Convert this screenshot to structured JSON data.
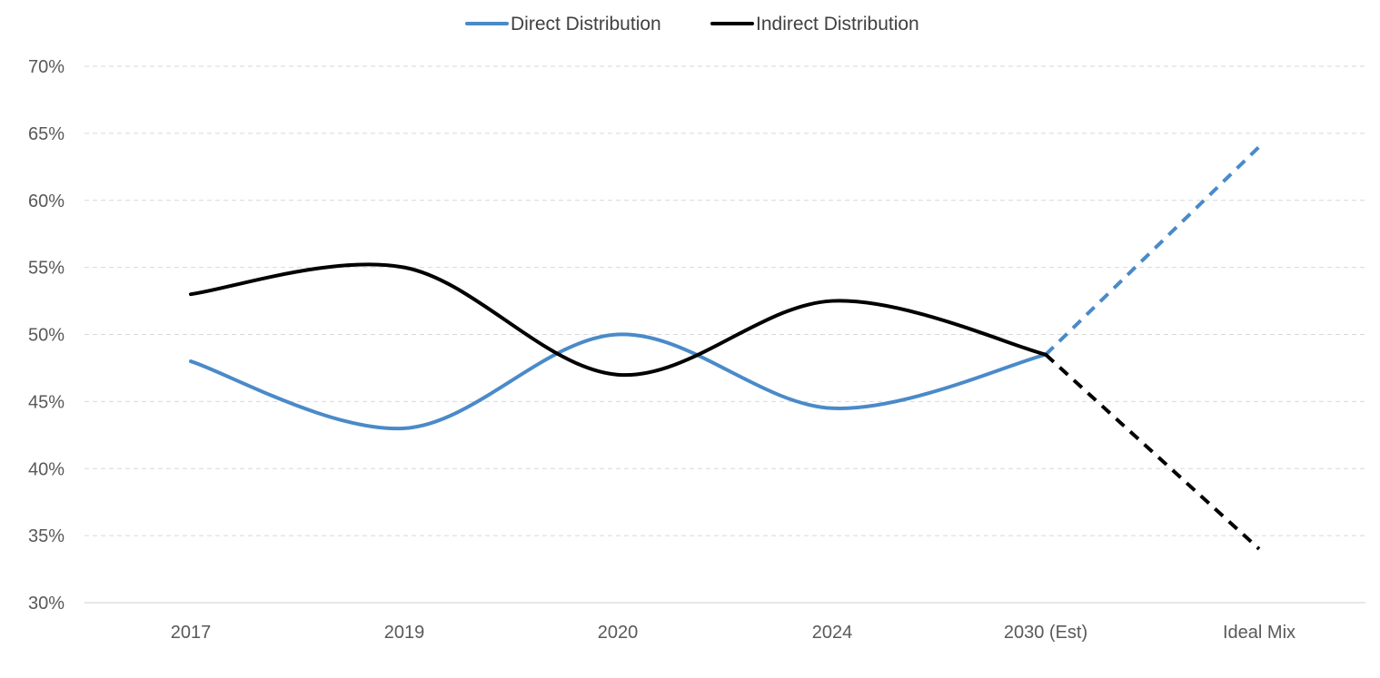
{
  "chart_data": {
    "type": "line",
    "title": "",
    "xlabel": "",
    "ylabel": "",
    "categories": [
      "2017",
      "2019",
      "2020",
      "2024",
      "2030 (Est)",
      "Ideal Mix"
    ],
    "y_unit": "%",
    "ylim": [
      30,
      70
    ],
    "yticks": [
      30,
      35,
      40,
      45,
      50,
      55,
      60,
      65,
      70
    ],
    "ytick_labels": [
      "30%",
      "35%",
      "40%",
      "45%",
      "50%",
      "55%",
      "60%",
      "65%",
      "70%"
    ],
    "grid": true,
    "legend_position": "top-center",
    "projection_from_category_index": 4,
    "series": [
      {
        "name": "Direct Distribution",
        "color": "#4a8ac9",
        "values": [
          48,
          43,
          50,
          44.5,
          48.5,
          64
        ]
      },
      {
        "name": "Indirect Distribution",
        "color": "#000000",
        "values": [
          53,
          55,
          47,
          52.5,
          48.5,
          34
        ]
      }
    ]
  }
}
